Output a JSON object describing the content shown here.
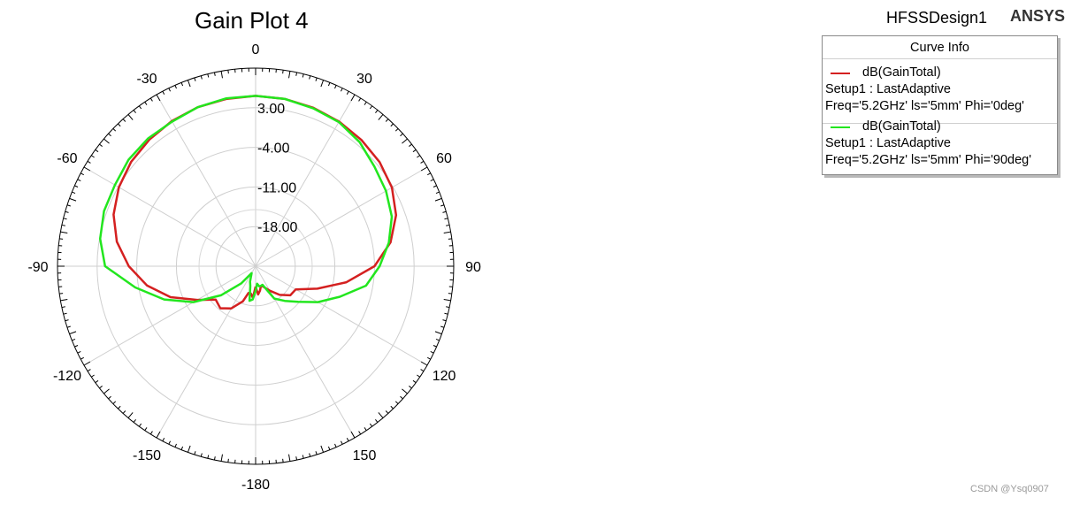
{
  "app": {
    "design_name": "HFSSDesign1",
    "brand": "ANSYS",
    "watermark": "CSDN @Ysq0907"
  },
  "legend": {
    "header": "Curve Info",
    "entries": [
      {
        "name": "dB(GainTotal)",
        "setup": "Setup1 : LastAdaptive",
        "params": "Freq='5.2GHz' ls='5mm' Phi='0deg'",
        "color": "#d42020"
      },
      {
        "name": "dB(GainTotal)",
        "setup": "Setup1 : LastAdaptive",
        "params": "Freq='5.2GHz' ls='5mm' Phi='90deg'",
        "color": "#22e61e"
      }
    ]
  },
  "chart_data": {
    "type": "polar",
    "title": "Gain Plot 4",
    "angle_unit": "deg",
    "angle_ticks": [
      0,
      30,
      60,
      90,
      120,
      150,
      -180,
      -150,
      -120,
      -90,
      -60,
      -30
    ],
    "radial_ticks": [
      3.0,
      -4.0,
      -11.0,
      -18.0
    ],
    "radial_tick_labels": [
      "3.00",
      "-4.00",
      "-11.00",
      "-18.00"
    ],
    "radial_range": [
      -25,
      10
    ],
    "grid": true,
    "series": [
      {
        "name": "dB(GainTotal) Phi='0deg'",
        "color": "#d42020",
        "theta": [
          -180,
          -175,
          -170,
          -165,
          -160,
          -150,
          -140,
          -130,
          -120,
          -110,
          -100,
          -90,
          -80,
          -70,
          -60,
          -50,
          -40,
          -30,
          -20,
          -10,
          0,
          10,
          20,
          30,
          40,
          50,
          60,
          70,
          80,
          90,
          100,
          110,
          120,
          130,
          140,
          150,
          160,
          165,
          170,
          175,
          180
        ],
        "r": [
          -21.4,
          -19.4,
          -20.1,
          -20.1,
          -18.4,
          -16.4,
          -15.3,
          -15.8,
          -13.1,
          -9.0,
          -5.5,
          -2.6,
          -0.1,
          1.7,
          2.9,
          3.7,
          4.2,
          4.6,
          4.9,
          5.0,
          5.1,
          5.0,
          4.8,
          4.5,
          4.1,
          3.6,
          2.8,
          1.4,
          -0.8,
          -4.0,
          -8.7,
          -13.4,
          -16.8,
          -17.0,
          -18.4,
          -20.0,
          -21.2,
          -21.4,
          -20.6,
          -20.0,
          -21.4
        ]
      },
      {
        "name": "dB(GainTotal) Phi='90deg'",
        "color": "#22e61e",
        "theta": [
          -180,
          -175,
          -170,
          -165,
          -160,
          -150,
          -140,
          -130,
          -120,
          -110,
          -100,
          -90,
          -80,
          -70,
          -60,
          -50,
          -40,
          -30,
          -20,
          -10,
          0,
          10,
          20,
          30,
          40,
          50,
          60,
          70,
          80,
          90,
          100,
          110,
          120,
          130,
          140,
          150,
          160,
          165,
          170,
          175,
          180
        ],
        "r": [
          -20.6,
          -19.1,
          -18.8,
          -21.4,
          -22.1,
          -23.6,
          -21.0,
          -17.0,
          -12.3,
          -7.8,
          -3.4,
          1.6,
          2.9,
          3.5,
          3.7,
          4.3,
          4.5,
          4.5,
          4.9,
          5.1,
          5.1,
          5.0,
          4.7,
          4.4,
          3.6,
          2.4,
          1.6,
          0.6,
          -1.1,
          -3.1,
          -5.2,
          -9.2,
          -12.3,
          -15.2,
          -17.0,
          -18.4,
          -21.5,
          -21.4,
          -21.4,
          -21.9,
          -20.6
        ]
      }
    ]
  }
}
